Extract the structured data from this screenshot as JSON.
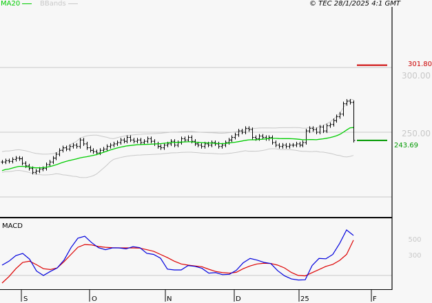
{
  "header": {
    "legend": [
      {
        "label": "MA20",
        "color": "#00cc00"
      },
      {
        "label": "BBands",
        "color": "#c8c8c8"
      }
    ],
    "copyright": "© TEC 28/1/2025 4:1 GMT"
  },
  "colors": {
    "bars": "#000000",
    "ma20": "#00cc00",
    "bbands": "#c8c8c8",
    "macd": "#0000dd",
    "signal": "#dd0000",
    "target_line": "#cc0000",
    "last_price_line": "#009900",
    "grid": "#c8c8c8"
  },
  "chart_data": [
    {
      "type": "line",
      "name_hint": "price",
      "price_axis": {
        "ticks": [
          "300.00",
          "250.00"
        ],
        "tick_values": [
          300,
          250
        ],
        "ylim": [
          186,
          316
        ]
      },
      "x_ticks": [
        "S",
        "O",
        "N",
        "D",
        "25",
        "F"
      ],
      "closes": [
        227,
        228,
        227.5,
        229,
        230,
        229.5,
        226,
        224,
        222,
        219,
        220,
        221.5,
        222,
        225,
        227,
        230,
        233,
        236,
        238,
        237,
        239,
        240,
        239,
        244,
        241,
        238,
        236,
        235,
        234,
        236,
        237,
        239,
        240,
        241,
        242,
        244,
        243,
        246,
        244,
        243,
        244,
        242,
        243,
        245,
        243,
        241,
        239,
        238,
        240,
        241,
        243,
        240,
        242,
        245,
        244,
        246,
        243,
        241,
        240,
        239,
        241,
        240,
        242,
        241,
        239,
        240,
        242,
        244,
        246,
        248,
        251,
        250,
        253,
        252,
        246,
        245,
        247,
        246,
        245,
        246,
        242,
        240,
        239,
        240,
        239,
        240,
        240,
        241,
        240,
        242,
        251,
        253,
        252,
        250,
        254,
        251,
        255,
        256,
        259,
        262,
        264,
        272,
        274,
        273,
        243.69
      ],
      "indicators": [
        "MA20",
        "BBands"
      ],
      "levels": [
        {
          "label": "301.80",
          "value": 301.8,
          "color": "#cc0000"
        },
        {
          "label": "243.69",
          "value": 243.69,
          "color": "#009900"
        }
      ]
    },
    {
      "type": "line",
      "title": "MACD",
      "y_ticks": [
        "500",
        "300"
      ],
      "tick_values": [
        500,
        300
      ],
      "macd": [
        165,
        215,
        285,
        313,
        240,
        90,
        35,
        85,
        130,
        230,
        385,
        505,
        530,
        450,
        385,
        360,
        383,
        383,
        370,
        398,
        385,
        315,
        300,
        252,
        115,
        104,
        104,
        160,
        150,
        125,
        64,
        70,
        45,
        50,
        100,
        195,
        250,
        229,
        200,
        185,
        95,
        30,
        -10,
        -23,
        -20,
        160,
        250,
        245,
        300,
        440,
        610,
        540
      ],
      "signal": [
        -61,
        20,
        120,
        200,
        215,
        170,
        120,
        110,
        130,
        210,
        300,
        390,
        425,
        420,
        400,
        390,
        385,
        383,
        383,
        383,
        380,
        360,
        340,
        300,
        260,
        215,
        180,
        165,
        155,
        145,
        113,
        85,
        70,
        64,
        75,
        120,
        155,
        180,
        189,
        186,
        165,
        130,
        72,
        35,
        30,
        70,
        110,
        150,
        175,
        225,
        300,
        480
      ]
    }
  ]
}
